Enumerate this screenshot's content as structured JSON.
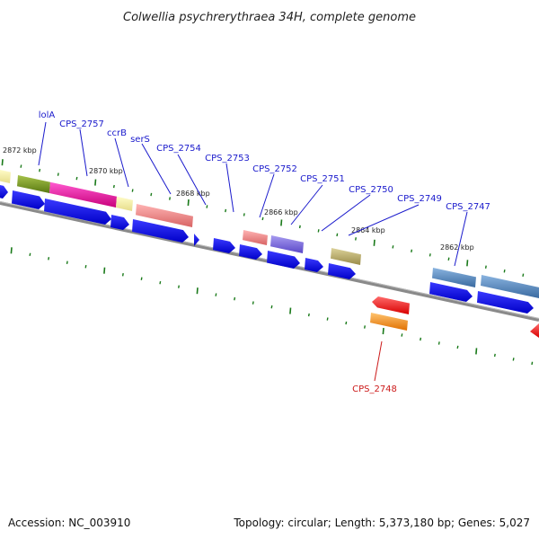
{
  "title": "Colwellia psychrerythraea 34H, complete genome",
  "footer": {
    "accession": "Accession: NC_003910",
    "summary": "Topology: circular; Length: 5,373,180 bp; Genes: 5,027"
  },
  "colors": {
    "label_forward": "#1a1acc",
    "label_reverse": "#cc1a1a",
    "cds": "#0a0ae6",
    "backbone": "#808080",
    "tick": "#1a7a1a"
  },
  "ticks": [
    {
      "label": "2872 kbp"
    },
    {
      "label": "2870 kbp"
    },
    {
      "label": "2868 kbp"
    },
    {
      "label": "2866 kbp"
    },
    {
      "label": "2864 kbp"
    },
    {
      "label": "2862 kbp"
    }
  ],
  "gene_labels": [
    {
      "name": "lolA",
      "strand": "forward"
    },
    {
      "name": "CPS_2757",
      "strand": "forward"
    },
    {
      "name": "ccrB",
      "strand": "forward"
    },
    {
      "name": "serS",
      "strand": "forward"
    },
    {
      "name": "CPS_2754",
      "strand": "forward"
    },
    {
      "name": "CPS_2753",
      "strand": "forward"
    },
    {
      "name": "CPS_2752",
      "strand": "forward"
    },
    {
      "name": "CPS_2751",
      "strand": "forward"
    },
    {
      "name": "CPS_2750",
      "strand": "forward"
    },
    {
      "name": "CPS_2749",
      "strand": "forward"
    },
    {
      "name": "CPS_2747",
      "strand": "forward"
    },
    {
      "name": "CPS_2748",
      "strand": "reverse"
    }
  ]
}
